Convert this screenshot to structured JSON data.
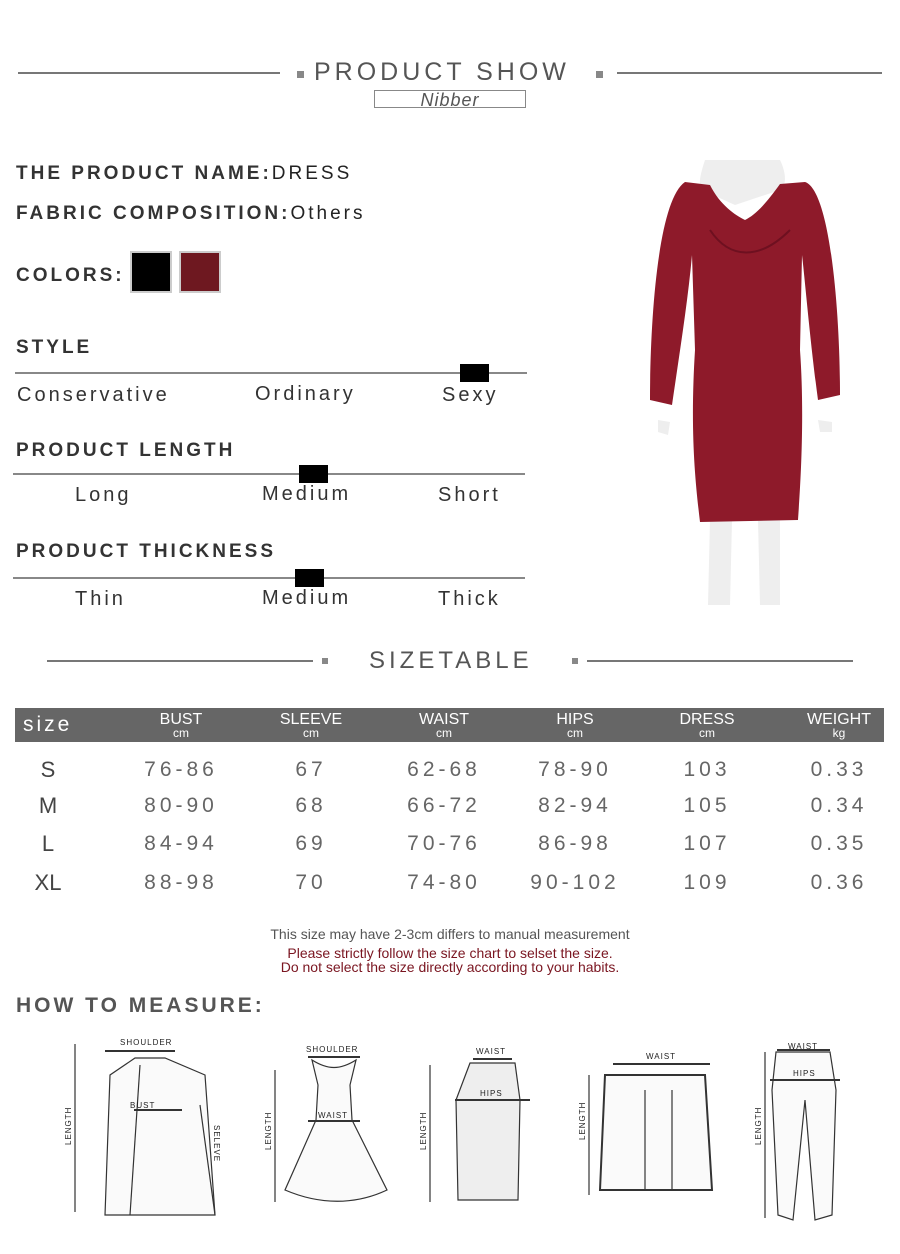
{
  "header": {
    "title": "PRODUCT SHOW",
    "brand": "Nibber"
  },
  "product": {
    "name_label": "THE PRODUCT NAME:",
    "name_value": "DRESS",
    "fabric_label": "FABRIC COMPOSITION:",
    "fabric_value": "Others",
    "colors_label": "COLORS:",
    "colors": [
      "#000000",
      "#6e1820"
    ]
  },
  "scales": [
    {
      "title": "STYLE",
      "options": [
        "Conservative",
        "Ordinary",
        "Sexy"
      ],
      "selected": "Sexy"
    },
    {
      "title": "PRODUCT LENGTH",
      "options": [
        "Long",
        "Medium",
        "Short"
      ],
      "selected": "Medium"
    },
    {
      "title": "PRODUCT THICKNESS",
      "options": [
        "Thin",
        "Medium",
        "Thick"
      ],
      "selected": "Medium"
    }
  ],
  "dress_color": "#8e1a2a",
  "sizetable": {
    "title": "SIZETABLE",
    "size_header": "size",
    "columns": [
      {
        "name": "BUST",
        "unit": "cm"
      },
      {
        "name": "SLEEVE",
        "unit": "cm"
      },
      {
        "name": "WAIST",
        "unit": "cm"
      },
      {
        "name": "HIPS",
        "unit": "cm"
      },
      {
        "name": "DRESS",
        "unit": "cm"
      },
      {
        "name": "WEIGHT",
        "unit": "kg"
      }
    ],
    "rows": [
      {
        "size": "S",
        "values": [
          "76-86",
          "67",
          "62-68",
          "78-90",
          "103",
          "0.33"
        ]
      },
      {
        "size": "M",
        "values": [
          "80-90",
          "68",
          "66-72",
          "82-94",
          "105",
          "0.34"
        ]
      },
      {
        "size": "L",
        "values": [
          "84-94",
          "69",
          "70-76",
          "86-98",
          "107",
          "0.35"
        ]
      },
      {
        "size": "XL",
        "values": [
          "88-98",
          "70",
          "74-80",
          "90-102",
          "109",
          "0.36"
        ]
      }
    ]
  },
  "notes": {
    "line1": "This size may have 2-3cm differs to manual measurement",
    "line2": "Please strictly follow the size chart to selset the size.",
    "line3": "Do not select the size directly according to your habits."
  },
  "measure": {
    "title": "HOW TO MEASURE:",
    "labels": {
      "shoulder": "SHOULDER",
      "bust": "BUST",
      "length": "LENGTH",
      "sleeve": "SELEVE",
      "waist": "WAIST",
      "hips": "HIPS"
    }
  }
}
